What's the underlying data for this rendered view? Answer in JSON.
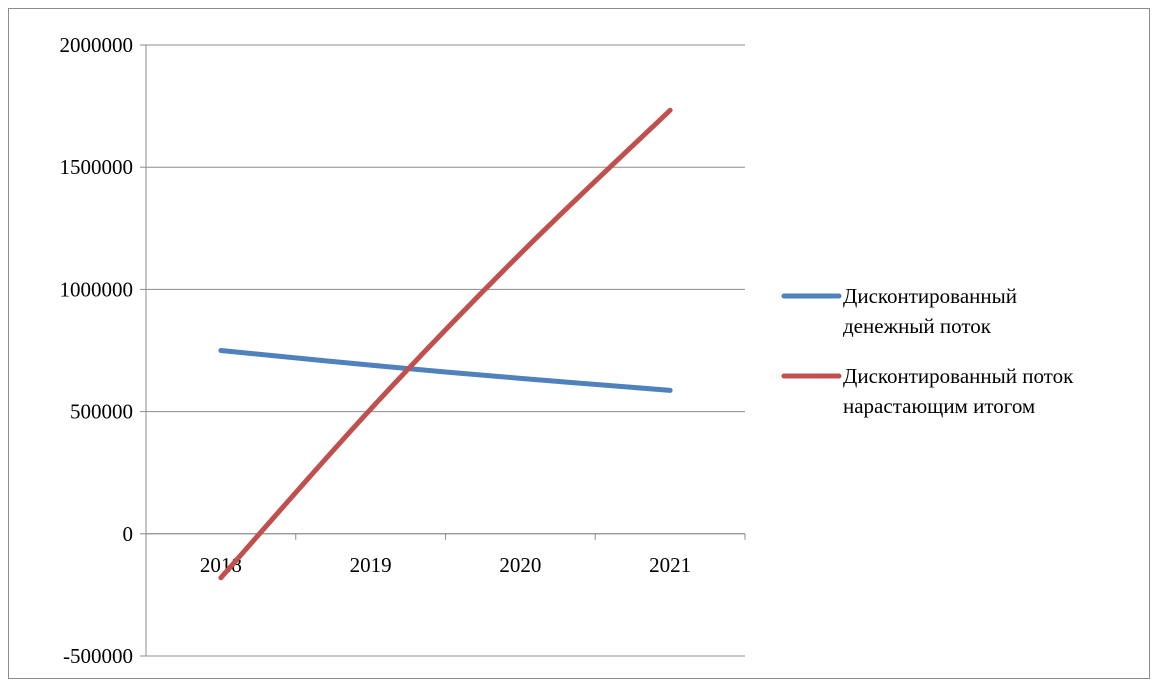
{
  "chart_data": {
    "type": "line",
    "categories": [
      "2018",
      "2019",
      "2020",
      "2021"
    ],
    "series": [
      {
        "name": "Дисконтированный денежный поток",
        "values": [
          750000,
          690000,
          636000,
          587000
        ],
        "color": "#4f81bd",
        "legend_lines": [
          "Дисконтированный",
          "денежный поток"
        ]
      },
      {
        "name": "Дисконтированный поток нарастающим итогом",
        "values": [
          -180000,
          510000,
          1146000,
          1733000
        ],
        "color": "#c0504d",
        "legend_lines": [
          "Дисконтированный поток",
          "нарастающим итогом"
        ]
      }
    ],
    "ylim": [
      -500000,
      2000000
    ],
    "y_ticks": [
      2000000,
      1500000,
      1000000,
      500000,
      0,
      -500000
    ],
    "y_tick_labels": [
      "2000000",
      "1500000",
      "1000000",
      "500000",
      "0",
      "-500000"
    ],
    "grid": true,
    "legend_position": "right",
    "title": "",
    "xlabel": "",
    "ylabel": ""
  }
}
